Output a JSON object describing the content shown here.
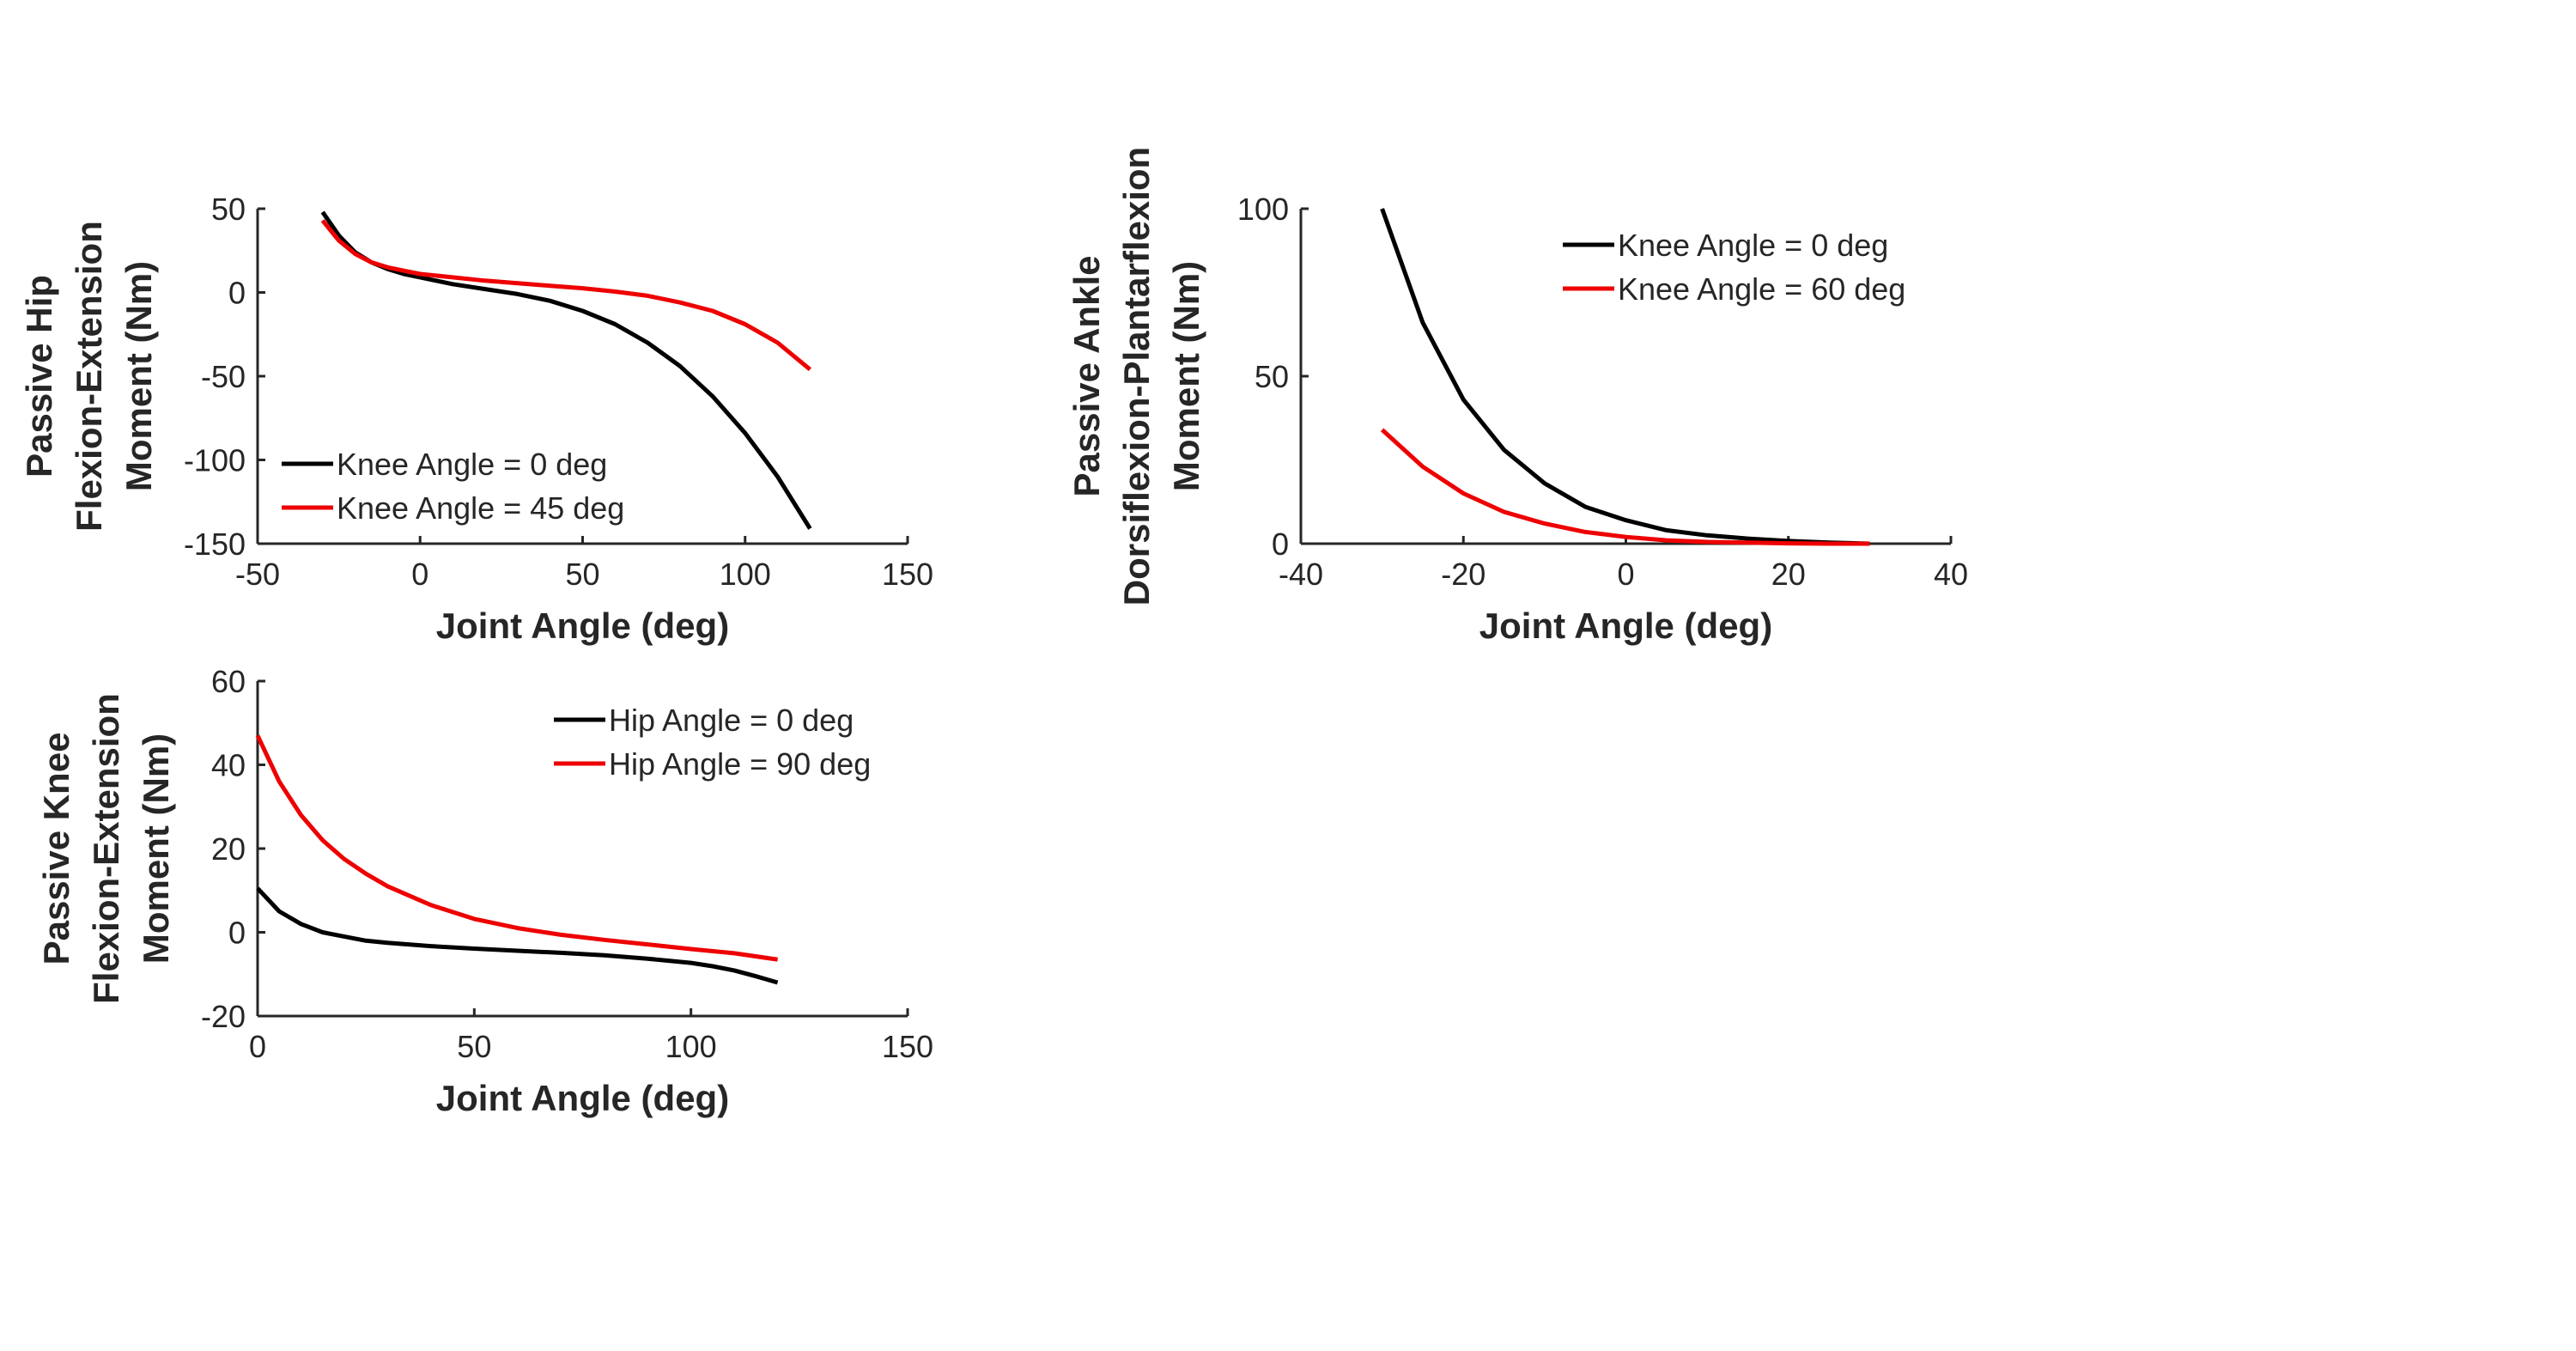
{
  "colors": {
    "black_series": "#000000",
    "red_series": "#ee0000",
    "axis": "#262626"
  },
  "chart_data": [
    {
      "id": "hip",
      "type": "line",
      "ylabel": [
        "Passive Hip",
        "Flexion-Extension",
        "Moment (Nm)"
      ],
      "xlabel": "Joint Angle (deg)",
      "xlim": [
        -50,
        150
      ],
      "ylim": [
        -150,
        50
      ],
      "xticks": [
        -50,
        0,
        50,
        100,
        150
      ],
      "yticks": [
        -150,
        -100,
        -50,
        0,
        50
      ],
      "legend_position": "bottom-left",
      "series": [
        {
          "name": "Knee Angle = 0 deg",
          "color": "#000000",
          "x": [
            -30,
            -25,
            -20,
            -15,
            -10,
            -5,
            0,
            10,
            20,
            30,
            40,
            50,
            60,
            70,
            80,
            90,
            100,
            110,
            120
          ],
          "y": [
            48,
            34,
            24,
            18,
            14,
            11,
            9,
            5,
            2,
            -1,
            -5,
            -11,
            -19,
            -30,
            -44,
            -62,
            -84,
            -110,
            -141
          ]
        },
        {
          "name": "Knee Angle = 45 deg",
          "color": "#ee0000",
          "x": [
            -30,
            -25,
            -20,
            -15,
            -10,
            -5,
            0,
            10,
            20,
            30,
            40,
            50,
            60,
            70,
            80,
            90,
            100,
            110,
            120
          ],
          "y": [
            43,
            31,
            23,
            18,
            15,
            13,
            11,
            9,
            7,
            5.5,
            4,
            2.5,
            0.5,
            -2,
            -6,
            -11,
            -19,
            -30,
            -46
          ]
        }
      ]
    },
    {
      "id": "ankle",
      "type": "line",
      "ylabel": [
        "Passive Ankle",
        "Dorsiflexion-Plantarflexion",
        "Moment (Nm)"
      ],
      "xlabel": "Joint Angle (deg)",
      "xlim": [
        -40,
        40
      ],
      "ylim": [
        0,
        100
      ],
      "xticks": [
        -40,
        -20,
        0,
        20,
        40
      ],
      "yticks": [
        0,
        50,
        100
      ],
      "legend_position": "top-right",
      "series": [
        {
          "name": "Knee Angle = 0 deg",
          "color": "#000000",
          "x": [
            -30,
            -25,
            -20,
            -15,
            -10,
            -5,
            0,
            5,
            10,
            15,
            20,
            25,
            30
          ],
          "y": [
            100,
            66,
            43,
            28,
            18,
            11,
            7,
            4,
            2.5,
            1.5,
            0.8,
            0.3,
            0
          ]
        },
        {
          "name": "Knee Angle = 60 deg",
          "color": "#ee0000",
          "x": [
            -30,
            -25,
            -20,
            -15,
            -10,
            -5,
            0,
            5,
            10,
            15,
            20,
            25,
            30
          ],
          "y": [
            34,
            23,
            15,
            9.5,
            6,
            3.5,
            2,
            1,
            0.5,
            0.3,
            0.1,
            0,
            0
          ]
        }
      ]
    },
    {
      "id": "knee",
      "type": "line",
      "ylabel": [
        "Passive Knee",
        "Flexion-Extension",
        "Moment (Nm)"
      ],
      "xlabel": "Joint Angle (deg)",
      "xlim": [
        0,
        150
      ],
      "ylim": [
        -20,
        60
      ],
      "xticks": [
        0,
        50,
        100,
        150
      ],
      "yticks": [
        -20,
        0,
        20,
        40,
        60
      ],
      "legend_position": "top-right",
      "series": [
        {
          "name": "Hip Angle = 0 deg",
          "color": "#000000",
          "x": [
            0,
            5,
            10,
            15,
            20,
            25,
            30,
            40,
            50,
            60,
            70,
            80,
            90,
            100,
            105,
            110,
            115,
            120
          ],
          "y": [
            10.5,
            5,
            2,
            0,
            -1,
            -2,
            -2.5,
            -3.3,
            -3.9,
            -4.4,
            -4.9,
            -5.5,
            -6.3,
            -7.3,
            -8.1,
            -9.1,
            -10.5,
            -12
          ]
        },
        {
          "name": "Hip Angle = 90 deg",
          "color": "#ee0000",
          "x": [
            0,
            5,
            10,
            15,
            20,
            25,
            30,
            40,
            50,
            60,
            70,
            80,
            90,
            100,
            110,
            120
          ],
          "y": [
            47,
            36,
            28,
            22,
            17.5,
            14,
            11,
            6.5,
            3.2,
            1,
            -0.6,
            -1.8,
            -2.9,
            -4,
            -5,
            -6.5
          ]
        }
      ]
    }
  ]
}
